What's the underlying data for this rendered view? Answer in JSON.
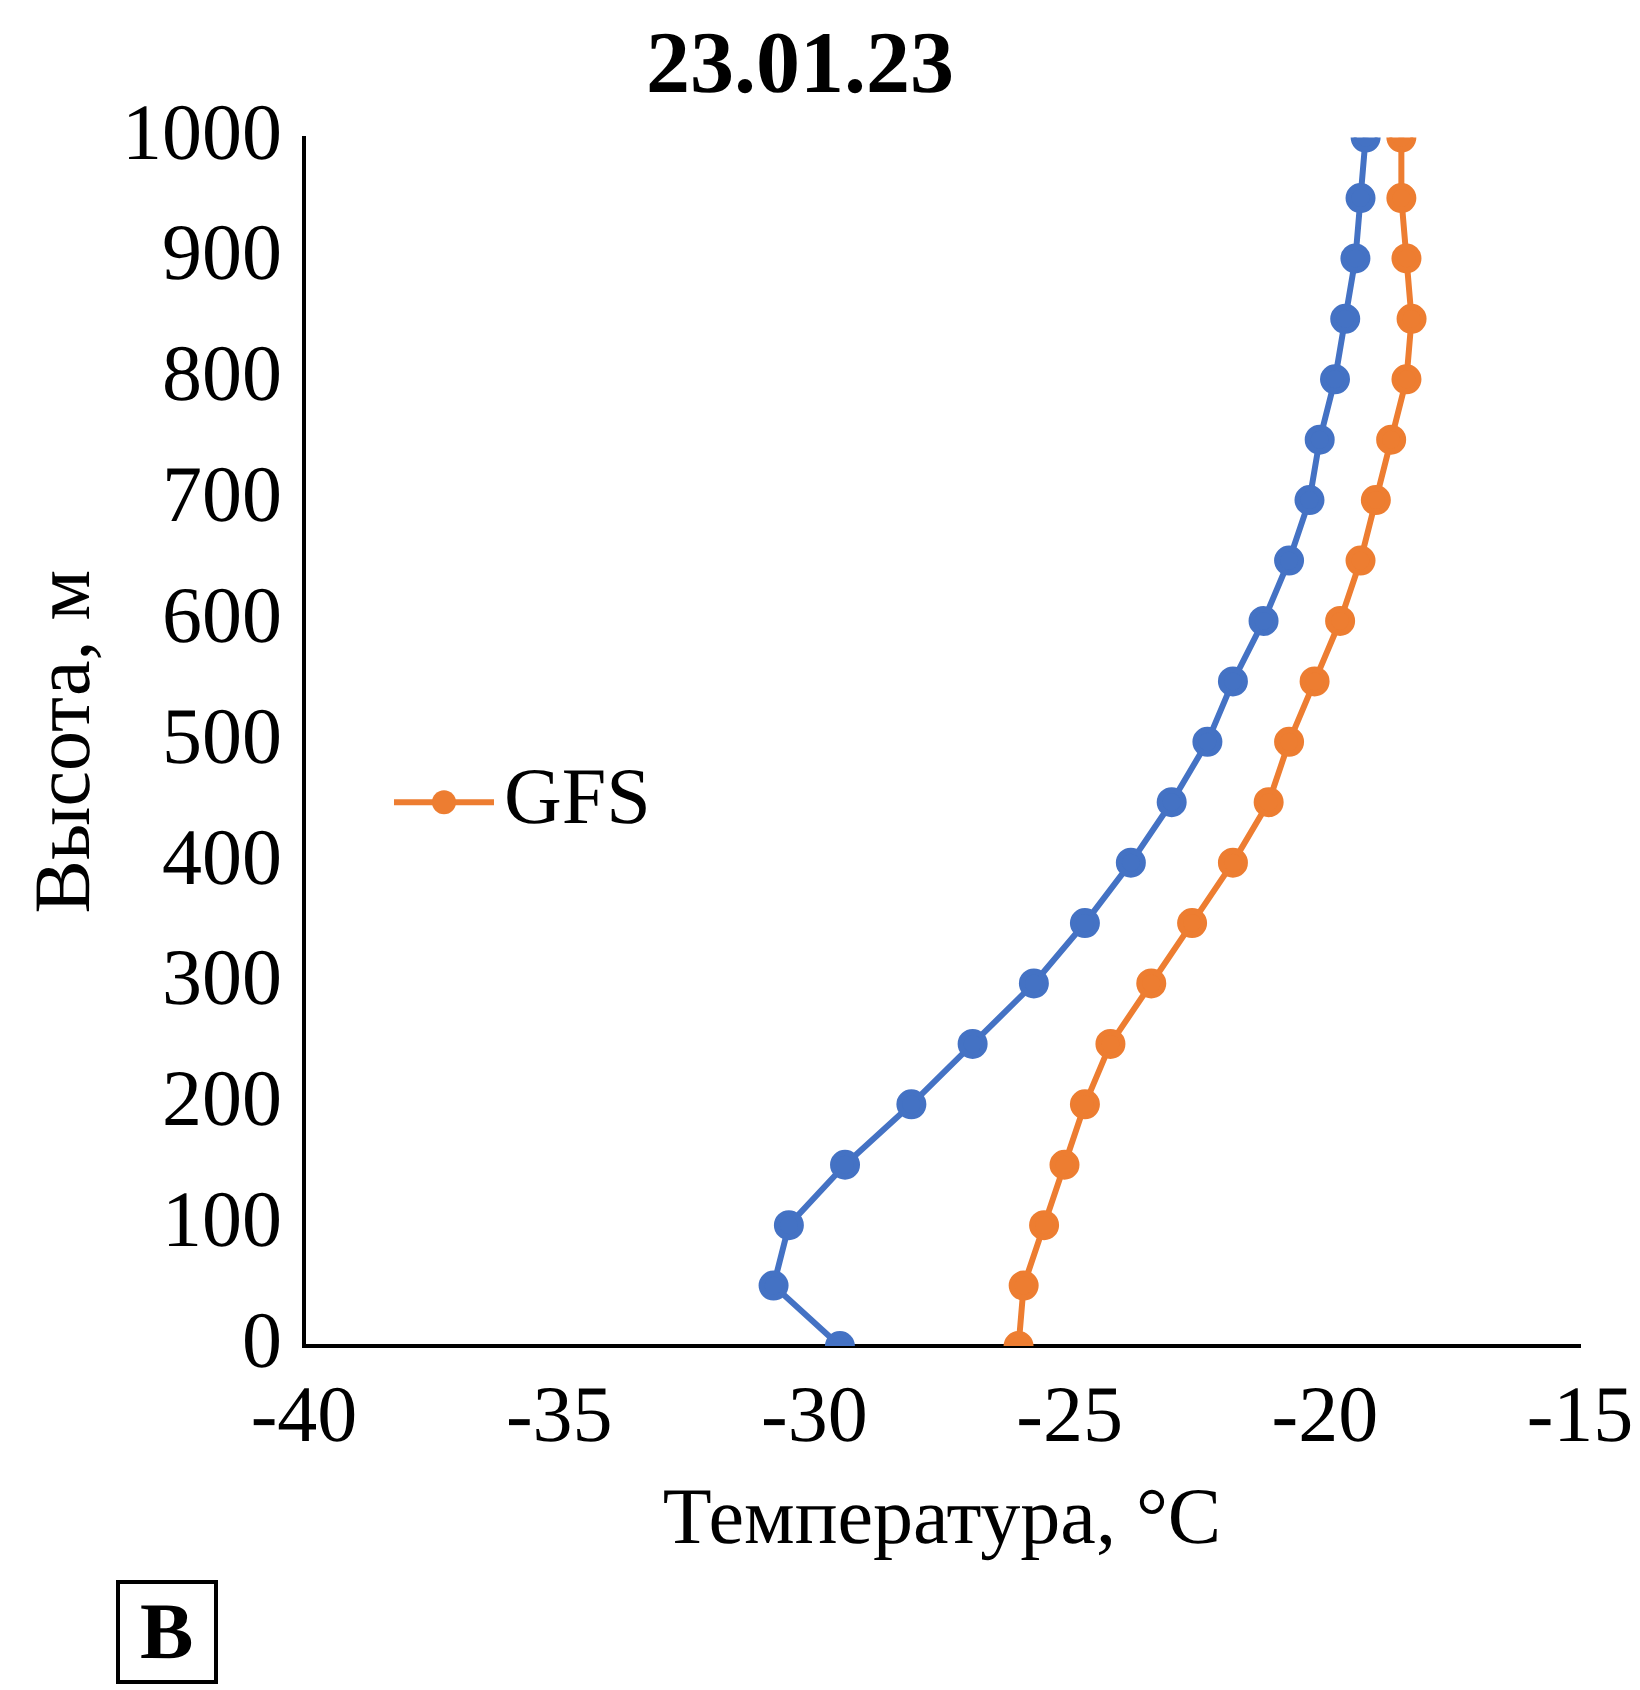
{
  "chart_data": {
    "type": "line",
    "title": "23.01.23",
    "xlabel": "Температура, °C",
    "ylabel": "Высота, м",
    "xlim": [
      -40,
      -15
    ],
    "xticks": [
      -40,
      -35,
      -30,
      -25,
      -20,
      -15
    ],
    "ylim": [
      0,
      1000
    ],
    "yticks": [
      0,
      100,
      200,
      300,
      400,
      500,
      600,
      700,
      800,
      900,
      1000
    ],
    "grid": false,
    "legend": "left",
    "marker": "circle",
    "annotations": [
      "В"
    ],
    "series": [
      {
        "color": "#4472c4",
        "x": [
          -29.5,
          -30.8,
          -30.5,
          -29.4,
          -28.1,
          -26.9,
          -25.7,
          -24.7,
          -23.8,
          -23.0,
          -22.3,
          -21.8,
          -21.2,
          -20.7,
          -20.3,
          -20.1,
          -19.8,
          -19.6,
          -19.4,
          -19.3,
          -19.2
        ],
        "values": [
          0,
          50,
          100,
          150,
          200,
          250,
          300,
          350,
          400,
          450,
          500,
          550,
          600,
          650,
          700,
          750,
          800,
          850,
          900,
          950,
          1000
        ]
      },
      {
        "name": "GFS",
        "color": "#ed7d31",
        "x": [
          -26.0,
          -25.9,
          -25.5,
          -25.1,
          -24.7,
          -24.2,
          -23.4,
          -22.6,
          -21.8,
          -21.1,
          -20.7,
          -20.2,
          -19.7,
          -19.3,
          -19.0,
          -18.7,
          -18.4,
          -18.3,
          -18.4,
          -18.5,
          -18.5
        ],
        "values": [
          0,
          50,
          100,
          150,
          200,
          250,
          300,
          350,
          400,
          450,
          500,
          550,
          600,
          650,
          700,
          750,
          800,
          850,
          900,
          950,
          1000
        ]
      }
    ]
  }
}
